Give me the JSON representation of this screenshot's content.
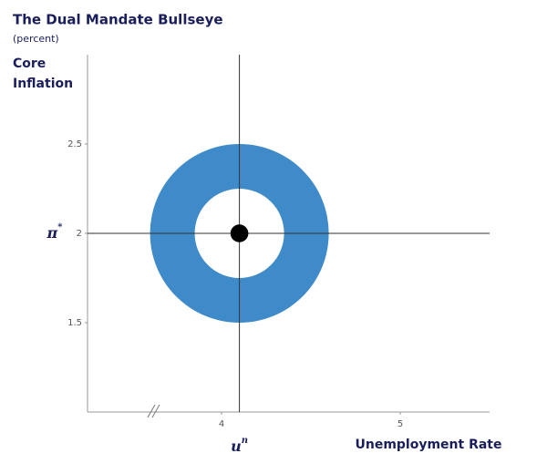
{
  "chart_data": {
    "type": "bullseye",
    "title": "The Dual Mandate Bullseye",
    "subtitle": "(percent)",
    "y_label": [
      "Core",
      "Inflation"
    ],
    "x_label": "Unemployment Rate",
    "annotations": {
      "y_target": {
        "base": "π",
        "sup": "*"
      },
      "x_target": {
        "base": "u",
        "sup": "n"
      }
    },
    "target": {
      "x": 4.1,
      "y": 2
    },
    "rings": [
      {
        "radius": 0.5,
        "color": "#3f8bc9"
      },
      {
        "radius": 0.25,
        "color": "#ffffff"
      },
      {
        "radius": 0.05,
        "color": "#000000"
      }
    ],
    "xlim": [
      3.25,
      5.5
    ],
    "xticks": [
      4,
      5
    ],
    "ylim": [
      1,
      3
    ],
    "yticks": [
      1.5,
      2,
      2.5
    ],
    "grid": false
  }
}
